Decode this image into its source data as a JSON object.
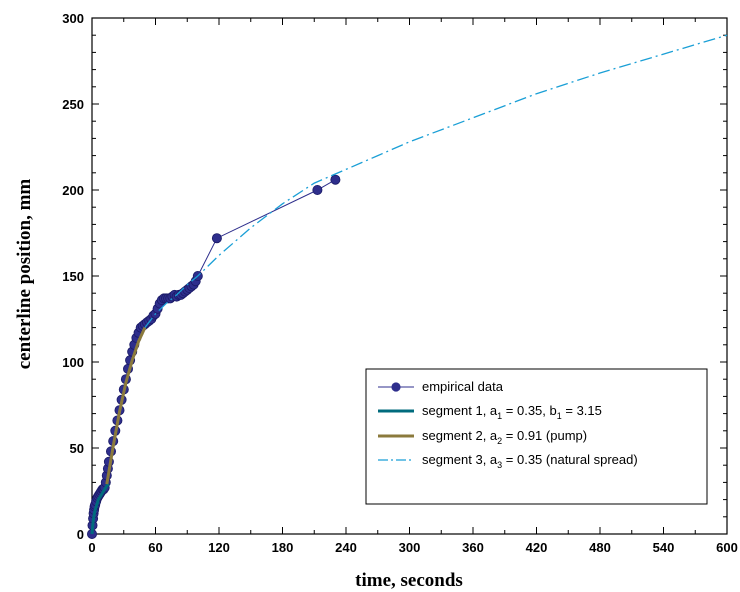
{
  "chart_data": {
    "type": "line",
    "title": "",
    "xlabel": "time, seconds",
    "ylabel": "centerline position, mm",
    "xlim": [
      0,
      600
    ],
    "ylim": [
      0,
      300
    ],
    "x_ticks": [
      0,
      60,
      120,
      180,
      240,
      300,
      360,
      420,
      480,
      540,
      600
    ],
    "y_ticks": [
      0,
      50,
      100,
      150,
      200,
      250,
      300
    ],
    "grid": false,
    "legend_position": "bottom-right",
    "series": [
      {
        "name": "empirical data",
        "style": "line-markers",
        "color": "#2e2e8c",
        "x": [
          0,
          0.5,
          1,
          1.5,
          2,
          2.5,
          3,
          4,
          5,
          6,
          7,
          8,
          9,
          10,
          11,
          12,
          13,
          14,
          15,
          16,
          18,
          20,
          22,
          24,
          26,
          28,
          30,
          32,
          34,
          36,
          38,
          40,
          42,
          44,
          46,
          48,
          50,
          52,
          54,
          56,
          58,
          60,
          62,
          64,
          66,
          68,
          70,
          72,
          74,
          76,
          78,
          80,
          82,
          84,
          86,
          88,
          90,
          92,
          94,
          96,
          98,
          100,
          118,
          213,
          230
        ],
        "y": [
          0,
          5,
          9,
          12,
          14,
          16,
          17,
          19,
          21,
          22,
          23,
          24,
          25,
          26,
          26,
          27,
          30,
          34,
          38,
          42,
          48,
          54,
          60,
          66,
          72,
          78,
          84,
          90,
          96,
          101,
          106,
          110,
          114,
          117,
          120,
          121,
          122,
          123,
          124,
          125,
          127,
          128,
          131,
          134,
          136,
          137,
          137,
          137,
          137,
          138,
          139,
          138,
          139,
          139,
          140,
          141,
          142,
          143,
          144,
          145,
          147,
          150,
          172,
          200,
          206
        ]
      },
      {
        "name": "segment 1, a1 = 0.35, b1 = 3.15",
        "legend_label": "segment 1, a",
        "legend_sub1": "1",
        "legend_mid": " = 0.35, b",
        "legend_sub2": "1",
        "legend_end": " = 3.15",
        "style": "thick-line",
        "color": "#006b7d",
        "x": [
          0,
          1,
          2,
          3,
          4,
          5,
          6,
          8,
          10,
          12,
          14,
          16
        ],
        "y": [
          0,
          7,
          11,
          14,
          16,
          18,
          20,
          22,
          24,
          26,
          28,
          29
        ]
      },
      {
        "name": "segment 2, a2 = 0.91 (pump)",
        "legend_label": "segment 2, a",
        "legend_sub1": "2",
        "legend_end": " = 0.91 (pump)",
        "style": "thick-line",
        "color": "#8b7a3c",
        "x": [
          14,
          20,
          26,
          32,
          38,
          44,
          50
        ],
        "y": [
          29,
          51,
          71,
          88,
          101,
          112,
          120
        ]
      },
      {
        "name": "segment 3, a3 = 0.35 (natural spread)",
        "legend_label": "segment 3, a",
        "legend_sub1": "3",
        "legend_end": " = 0.35 (natural spread)",
        "style": "dash-dot",
        "color": "#1a9fd6",
        "x": [
          50,
          60,
          70,
          80,
          90,
          100,
          120,
          150,
          180,
          210,
          240,
          270,
          300,
          360,
          420,
          480,
          540,
          600
        ],
        "y": [
          120,
          128,
          134,
          139,
          145,
          150,
          162,
          178,
          192,
          204,
          212,
          220,
          228,
          242,
          256,
          268,
          279,
          290
        ]
      }
    ]
  }
}
